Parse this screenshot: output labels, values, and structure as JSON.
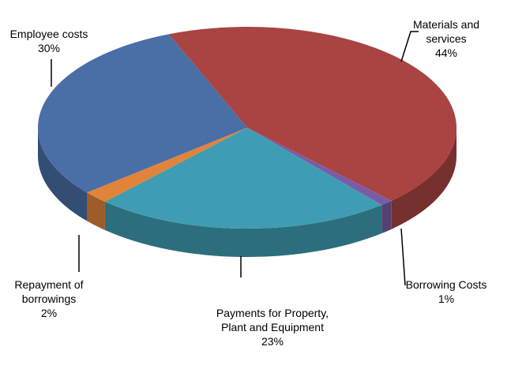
{
  "chart_data": {
    "type": "pie3d",
    "categories": [
      "Materials and services",
      "Borrowing Costs",
      "Payments for Property, Plant and Equipment",
      "Repayment of borrowings",
      "Employee costs"
    ],
    "values": [
      44,
      1,
      23,
      2,
      30
    ],
    "value_labels": [
      "44%",
      "1%",
      "23%",
      "2%",
      "30%"
    ],
    "colors": [
      "#a94442",
      "#7a5ca6",
      "#3f9db3",
      "#e0843a",
      "#4a6ea6"
    ]
  }
}
